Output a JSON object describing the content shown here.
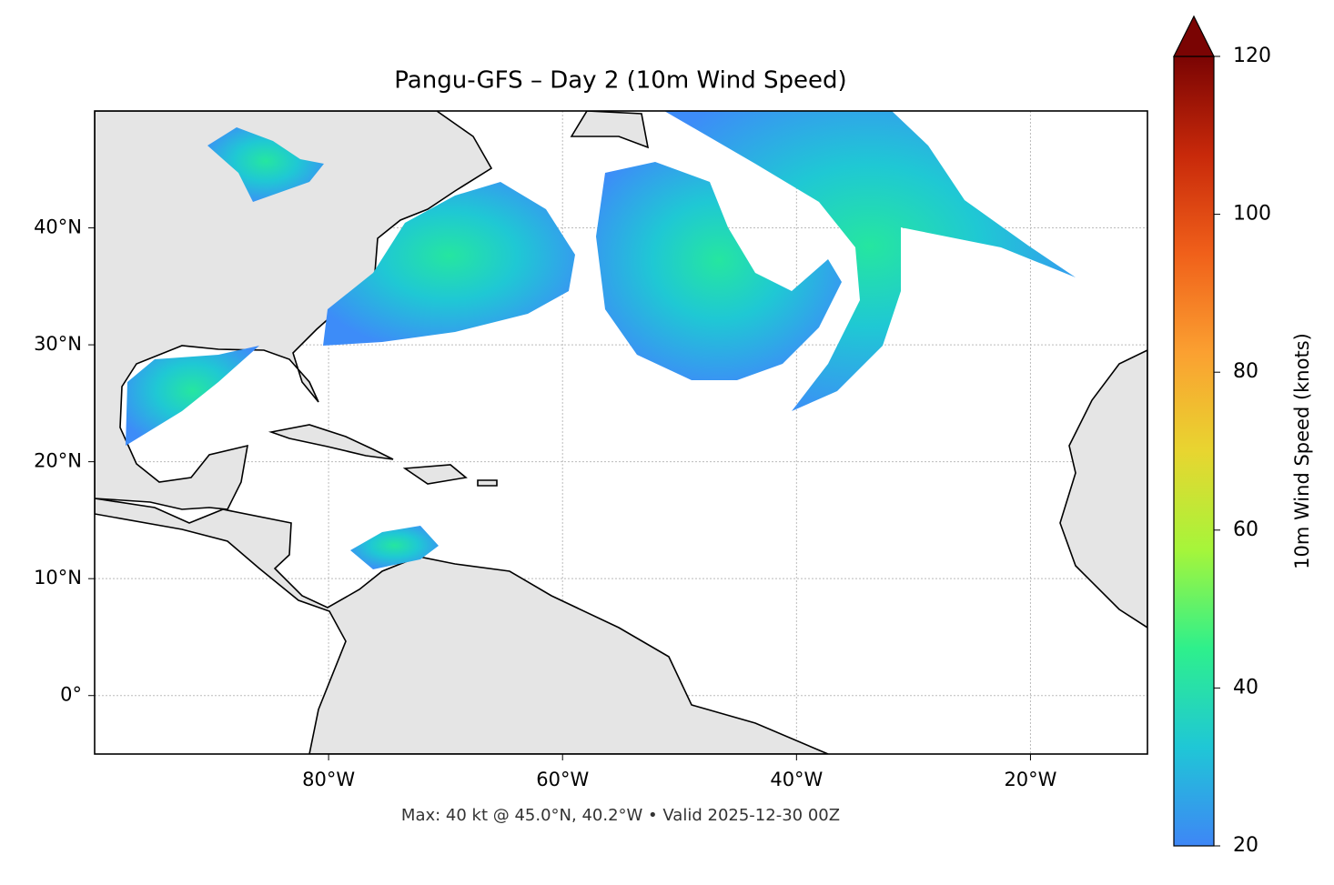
{
  "chart_data": {
    "type": "map",
    "title": "Pangu-GFS – Day 2 (10m Wind Speed)",
    "subtitle": "Max: 40 kt @ 45.0°N, 40.2°W • Valid 2025-12-30 00Z",
    "xlim": [
      -100,
      -10
    ],
    "ylim": [
      -5,
      50
    ],
    "xticks": [
      {
        "value": -80,
        "label": "80°W"
      },
      {
        "value": -60,
        "label": "60°W"
      },
      {
        "value": -40,
        "label": "40°W"
      },
      {
        "value": -20,
        "label": "20°W"
      }
    ],
    "yticks": [
      {
        "value": 0,
        "label": "0°"
      },
      {
        "value": 10,
        "label": "10°N"
      },
      {
        "value": 20,
        "label": "20°N"
      },
      {
        "value": 30,
        "label": "30°N"
      },
      {
        "value": 40,
        "label": "40°N"
      }
    ],
    "grid": true,
    "colorbar": {
      "label": "10m Wind Speed (knots)",
      "clim": [
        20,
        120
      ],
      "ticks": [
        20,
        40,
        60,
        80,
        100,
        120
      ],
      "colormap": [
        "#3e86f6",
        "#1fc7d6",
        "#2ef08c",
        "#a6f53a",
        "#e8d530",
        "#fba031",
        "#f0601a",
        "#c8290a",
        "#7a0403"
      ]
    }
  }
}
